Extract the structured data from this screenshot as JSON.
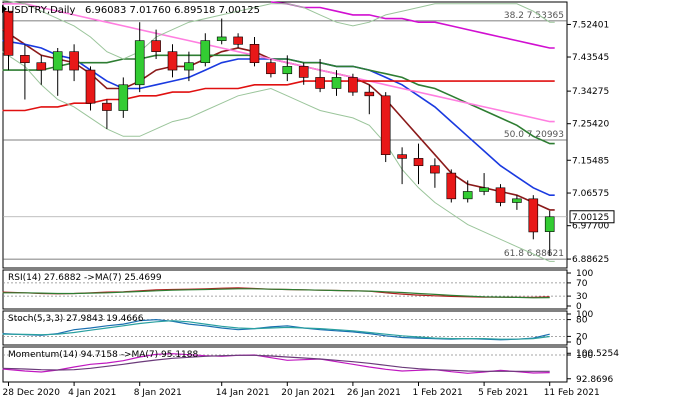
{
  "chart_data": [
    {
      "type": "candlestick",
      "symbol": "USDTRY",
      "timeframe": "Daily",
      "header": {
        "symbol_text": "USDTRY,Daily",
        "ohlc_text": "6.96083 7.01760 6.89518 7.00125"
      },
      "last_price": 7.00125,
      "last_price_label": "7.00125",
      "ylim": [
        6.862,
        7.585
      ],
      "y_ticks": [
        {
          "value": 7.52401,
          "label": "7.52401"
        },
        {
          "value": 7.43545,
          "label": "7.43545"
        },
        {
          "value": 7.34275,
          "label": "7.34275"
        },
        {
          "value": 7.2542,
          "label": "7.25420"
        },
        {
          "value": 7.15485,
          "label": "7.15485"
        },
        {
          "value": 7.06575,
          "label": "7.06575"
        },
        {
          "value": 6.977,
          "label": "6.97700"
        },
        {
          "value": 6.88625,
          "label": "6.88625"
        }
      ],
      "x_ticks": [
        {
          "index": 0,
          "label": "28 Dec 2020"
        },
        {
          "index": 4,
          "label": "4 Jan 2021"
        },
        {
          "index": 8,
          "label": "8 Jan 2021"
        },
        {
          "index": 13,
          "label": "14 Jan 2021"
        },
        {
          "index": 17,
          "label": "20 Jan 2021"
        },
        {
          "index": 21,
          "label": "26 Jan 2021"
        },
        {
          "index": 25,
          "label": "1 Feb 2021"
        },
        {
          "index": 29,
          "label": "5 Feb 2021"
        },
        {
          "index": 33,
          "label": "11 Feb 2021"
        }
      ],
      "fib_levels": [
        {
          "name": "38.2",
          "value": 7.53365,
          "label": "38.2 7.53365"
        },
        {
          "name": "50.0",
          "value": 7.20993,
          "label": "50.0 7.20993"
        },
        {
          "name": "61.8",
          "value": 6.88621,
          "label": "61.8 6.88621"
        }
      ],
      "candles": [
        {
          "o": 7.56,
          "h": 7.57,
          "l": 7.4,
          "c": 7.44
        },
        {
          "o": 7.44,
          "h": 7.47,
          "l": 7.32,
          "c": 7.42
        },
        {
          "o": 7.42,
          "h": 7.44,
          "l": 7.36,
          "c": 7.4
        },
        {
          "o": 7.4,
          "h": 7.46,
          "l": 7.33,
          "c": 7.45
        },
        {
          "o": 7.45,
          "h": 7.47,
          "l": 7.37,
          "c": 7.4
        },
        {
          "o": 7.4,
          "h": 7.41,
          "l": 7.29,
          "c": 7.31
        },
        {
          "o": 7.31,
          "h": 7.32,
          "l": 7.24,
          "c": 7.29
        },
        {
          "o": 7.29,
          "h": 7.38,
          "l": 7.27,
          "c": 7.36
        },
        {
          "o": 7.36,
          "h": 7.53,
          "l": 7.34,
          "c": 7.48
        },
        {
          "o": 7.48,
          "h": 7.51,
          "l": 7.43,
          "c": 7.45
        },
        {
          "o": 7.45,
          "h": 7.47,
          "l": 7.38,
          "c": 7.4
        },
        {
          "o": 7.4,
          "h": 7.45,
          "l": 7.37,
          "c": 7.42
        },
        {
          "o": 7.42,
          "h": 7.5,
          "l": 7.41,
          "c": 7.48
        },
        {
          "o": 7.48,
          "h": 7.54,
          "l": 7.47,
          "c": 7.49
        },
        {
          "o": 7.49,
          "h": 7.5,
          "l": 7.46,
          "c": 7.47
        },
        {
          "o": 7.47,
          "h": 7.49,
          "l": 7.41,
          "c": 7.42
        },
        {
          "o": 7.42,
          "h": 7.43,
          "l": 7.38,
          "c": 7.39
        },
        {
          "o": 7.39,
          "h": 7.44,
          "l": 7.37,
          "c": 7.41
        },
        {
          "o": 7.41,
          "h": 7.42,
          "l": 7.36,
          "c": 7.38
        },
        {
          "o": 7.38,
          "h": 7.43,
          "l": 7.34,
          "c": 7.35
        },
        {
          "o": 7.35,
          "h": 7.4,
          "l": 7.33,
          "c": 7.38
        },
        {
          "o": 7.38,
          "h": 7.39,
          "l": 7.33,
          "c": 7.34
        },
        {
          "o": 7.34,
          "h": 7.36,
          "l": 7.28,
          "c": 7.33
        },
        {
          "o": 7.33,
          "h": 7.34,
          "l": 7.15,
          "c": 7.17
        },
        {
          "o": 7.17,
          "h": 7.19,
          "l": 7.09,
          "c": 7.16
        },
        {
          "o": 7.16,
          "h": 7.2,
          "l": 7.09,
          "c": 7.14
        },
        {
          "o": 7.14,
          "h": 7.16,
          "l": 7.08,
          "c": 7.12
        },
        {
          "o": 7.12,
          "h": 7.13,
          "l": 7.04,
          "c": 7.05
        },
        {
          "o": 7.05,
          "h": 7.1,
          "l": 7.04,
          "c": 7.07
        },
        {
          "o": 7.07,
          "h": 7.12,
          "l": 7.06,
          "c": 7.08
        },
        {
          "o": 7.08,
          "h": 7.09,
          "l": 7.03,
          "c": 7.04
        },
        {
          "o": 7.04,
          "h": 7.06,
          "l": 7.02,
          "c": 7.05
        },
        {
          "o": 7.05,
          "h": 7.06,
          "l": 6.94,
          "c": 6.96
        },
        {
          "o": 6.96083,
          "h": 7.0176,
          "l": 6.89518,
          "c": 7.00125
        }
      ],
      "overlays": [
        {
          "color": "#8b1a1a",
          "values": [
            7.51,
            7.47,
            7.44,
            7.43,
            7.42,
            7.39,
            7.35,
            7.35,
            7.37,
            7.4,
            7.41,
            7.41,
            7.43,
            7.45,
            7.46,
            7.45,
            7.43,
            7.42,
            7.41,
            7.4,
            7.39,
            7.38,
            7.36,
            7.32,
            7.27,
            7.22,
            7.17,
            7.12,
            7.09,
            7.08,
            7.07,
            7.06,
            7.04,
            7.02
          ]
        },
        {
          "color": "#1a3ae0",
          "values": [
            7.48,
            7.47,
            7.46,
            7.44,
            7.43,
            7.4,
            7.37,
            7.35,
            7.35,
            7.36,
            7.37,
            7.38,
            7.4,
            7.42,
            7.43,
            7.43,
            7.43,
            7.43,
            7.42,
            7.42,
            7.41,
            7.41,
            7.4,
            7.38,
            7.36,
            7.33,
            7.3,
            7.26,
            7.22,
            7.18,
            7.14,
            7.11,
            7.08,
            7.06
          ]
        },
        {
          "color": "#2e7d32",
          "values": [
            7.4,
            7.4,
            7.4,
            7.41,
            7.42,
            7.42,
            7.42,
            7.43,
            7.43,
            7.44,
            7.44,
            7.44,
            7.44,
            7.44,
            7.44,
            7.44,
            7.43,
            7.43,
            7.42,
            7.42,
            7.41,
            7.41,
            7.4,
            7.39,
            7.38,
            7.36,
            7.35,
            7.33,
            7.31,
            7.29,
            7.27,
            7.25,
            7.22,
            7.2
          ]
        },
        {
          "color": "#ff7ee0",
          "values": [
            7.58,
            7.58,
            7.57,
            7.56,
            7.55,
            7.54,
            7.53,
            7.52,
            7.51,
            7.5,
            7.49,
            7.48,
            7.47,
            7.46,
            7.45,
            7.44,
            7.43,
            7.42,
            7.41,
            7.4,
            7.39,
            7.38,
            7.37,
            7.36,
            7.35,
            7.34,
            7.33,
            7.32,
            7.31,
            7.3,
            7.29,
            7.28,
            7.27,
            7.26
          ]
        },
        {
          "color": "#d10fd1",
          "values": [
            null,
            null,
            null,
            null,
            null,
            null,
            null,
            null,
            null,
            null,
            null,
            null,
            null,
            null,
            null,
            null,
            7.585,
            7.58,
            7.57,
            7.57,
            7.56,
            7.55,
            7.55,
            7.54,
            7.54,
            7.53,
            7.53,
            7.52,
            7.51,
            7.5,
            7.49,
            7.48,
            7.47,
            7.46
          ]
        },
        {
          "color": "#e01010",
          "values": [
            7.29,
            7.29,
            7.3,
            7.3,
            7.31,
            7.31,
            7.32,
            7.32,
            7.33,
            7.33,
            7.34,
            7.34,
            7.35,
            7.35,
            7.35,
            7.36,
            7.36,
            7.36,
            7.37,
            7.37,
            7.37,
            7.37,
            7.37,
            7.37,
            7.37,
            7.37,
            7.37,
            7.37,
            7.37,
            7.37,
            7.37,
            7.37,
            7.37,
            7.37
          ]
        },
        {
          "color": "#9bc59b",
          "values": [
            7.59,
            7.58,
            7.56,
            7.54,
            7.52,
            7.49,
            7.45,
            7.43,
            7.45,
            7.49,
            7.51,
            7.53,
            7.54,
            7.55,
            7.56,
            7.57,
            7.58,
            7.58,
            7.57,
            7.55,
            7.53,
            7.52,
            7.53,
            7.55,
            7.56,
            7.57,
            7.58,
            7.58,
            7.58,
            7.58,
            7.58,
            7.58,
            7.56,
            7.53
          ]
        },
        {
          "color": "#9bc59b",
          "values": [
            7.45,
            7.41,
            7.36,
            7.32,
            7.3,
            7.27,
            7.24,
            7.22,
            7.22,
            7.24,
            7.26,
            7.27,
            7.29,
            7.31,
            7.33,
            7.34,
            7.35,
            7.33,
            7.31,
            7.29,
            7.28,
            7.27,
            7.25,
            7.2,
            7.13,
            7.08,
            7.04,
            7.01,
            6.98,
            6.96,
            6.94,
            6.92,
            6.9,
            6.88
          ]
        }
      ]
    },
    {
      "type": "line",
      "header": "RSI(14) 27.6882 ->MA(7) 25.4699",
      "ylim": [
        0,
        100
      ],
      "y_ticks": [
        {
          "value": 100,
          "label": "100"
        },
        {
          "value": 70,
          "label": "70"
        },
        {
          "value": 30,
          "label": "30"
        },
        {
          "value": 0,
          "label": "0"
        }
      ],
      "levels": [
        70,
        30
      ],
      "series": [
        {
          "color": "#b02020",
          "values": [
            42,
            40,
            38,
            37,
            38,
            40,
            42,
            43,
            46,
            49,
            50,
            51,
            52,
            54,
            55,
            53,
            51,
            50,
            49,
            48,
            47,
            46,
            45,
            40,
            36,
            33,
            31,
            29,
            28,
            27,
            27,
            26,
            26,
            27.6882
          ]
        },
        {
          "color": "#2e7d32",
          "values": [
            40,
            40,
            39,
            38,
            38,
            39,
            40,
            42,
            44,
            46,
            48,
            49,
            50,
            51,
            52,
            52,
            51,
            50,
            49,
            48,
            47,
            46,
            45,
            43,
            41,
            38,
            35,
            32,
            30,
            28,
            27,
            26,
            25,
            25.4699
          ]
        }
      ]
    },
    {
      "type": "line",
      "header": "Stoch(5,3,3) 27.9843 19.4666",
      "ylim": [
        0,
        100
      ],
      "y_ticks": [
        {
          "value": 100,
          "label": "100"
        },
        {
          "value": 80,
          "label": "80"
        },
        {
          "value": 20,
          "label": "20"
        },
        {
          "value": 0,
          "label": "0"
        }
      ],
      "levels": [
        80,
        20
      ],
      "series": [
        {
          "color": "#1a6fb0",
          "values": [
            30,
            26,
            24,
            30,
            44,
            50,
            58,
            64,
            76,
            80,
            74,
            64,
            58,
            50,
            44,
            48,
            54,
            58,
            50,
            44,
            40,
            36,
            30,
            22,
            16,
            14,
            12,
            10,
            12,
            10,
            8,
            10,
            14,
            27.9843
          ]
        },
        {
          "color": "#2aa0a0",
          "values": [
            28,
            27,
            26,
            28,
            34,
            42,
            50,
            58,
            66,
            72,
            76,
            72,
            64,
            56,
            50,
            48,
            50,
            52,
            50,
            48,
            44,
            40,
            34,
            28,
            22,
            18,
            14,
            12,
            12,
            12,
            10,
            10,
            12,
            19.4666
          ]
        }
      ]
    },
    {
      "type": "line",
      "header": "Momentum(14) 94.7158 ->MA(7) 95.1188",
      "ylim": [
        92.8,
        101.5
      ],
      "y_ticks": [
        {
          "value": 100.5254,
          "label": "100.5254"
        },
        {
          "value": 100,
          "label": "100"
        },
        {
          "value": 92.8696,
          "label": "92.8696"
        }
      ],
      "levels": [
        100
      ],
      "series": [
        {
          "color": "#c018c0",
          "values": [
            95.8,
            95.2,
            94.9,
            95.5,
            96.4,
            97.2,
            97.6,
            98.3,
            99.4,
            100.2,
            100.4,
            100.1,
            99.8,
            99.6,
            99.9,
            100.0,
            99.2,
            98.4,
            98.6,
            98.8,
            98.0,
            97.2,
            96.4,
            95.7,
            95.2,
            95.4,
            95.6,
            95.0,
            94.5,
            94.9,
            95.4,
            95.0,
            94.6,
            94.7158
          ]
        },
        {
          "color": "#6b3a7a",
          "values": [
            96.0,
            95.8,
            95.6,
            95.5,
            95.6,
            96.0,
            96.6,
            97.2,
            97.9,
            98.5,
            99.0,
            99.3,
            99.6,
            99.8,
            99.9,
            99.9,
            99.7,
            99.4,
            99.1,
            98.8,
            98.4,
            98.0,
            97.5,
            96.9,
            96.3,
            95.9,
            95.6,
            95.4,
            95.2,
            95.1,
            95.1,
            95.1,
            95.1,
            95.1188
          ]
        }
      ]
    }
  ]
}
